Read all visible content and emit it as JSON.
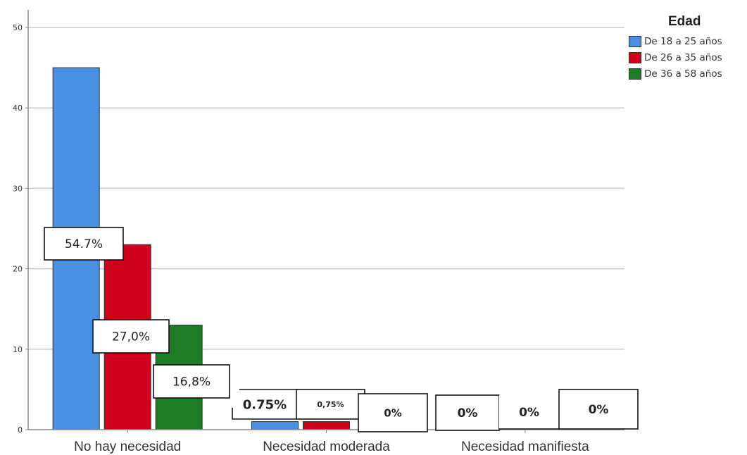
{
  "chart_data": {
    "type": "bar",
    "categories": [
      "No hay necesidad",
      "Necesidad moderada",
      "Necesidad manifiesta"
    ],
    "series": [
      {
        "name": "De 18 a 25 años",
        "color": "#4a90e2",
        "values": [
          45,
          1,
          0
        ]
      },
      {
        "name": "De 26 a 35 años",
        "color": "#d0021b",
        "values": [
          23,
          1,
          0
        ]
      },
      {
        "name": "De 36 a 58 años",
        "color": "#1e7b26",
        "values": [
          13,
          0,
          0
        ]
      }
    ],
    "yticks": [
      "0",
      "10",
      "20",
      "30",
      "40",
      "50"
    ],
    "ylim": [
      0,
      50
    ],
    "grid": true,
    "legend": {
      "title": "Edad",
      "position": "top-right"
    },
    "annotations": [
      {
        "text": "54.7%",
        "category": 0,
        "series": 0
      },
      {
        "text": "27,0%",
        "category": 0,
        "series": 1
      },
      {
        "text": "16,8%",
        "category": 0,
        "series": 2
      },
      {
        "text": "0.75%",
        "category": 1,
        "series": 0
      },
      {
        "text": "0,75%",
        "category": 1,
        "series": 1
      },
      {
        "text": "0%",
        "category": 1,
        "series": 2
      },
      {
        "text": "0%",
        "category": 2,
        "series": 0
      },
      {
        "text": "0%",
        "category": 2,
        "series": 1
      },
      {
        "text": "0%",
        "category": 2,
        "series": 2
      }
    ]
  }
}
